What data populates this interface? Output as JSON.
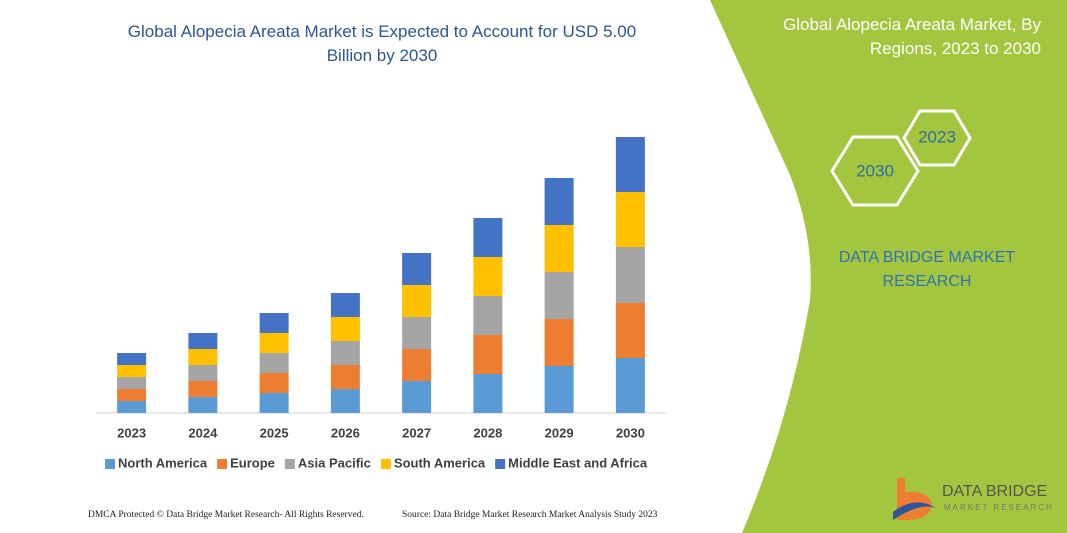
{
  "chart_data": {
    "type": "bar",
    "stacked": true,
    "title": "Global Alopecia Areata Market is Expected to Account for USD 5.00 Billion by 2030",
    "categories": [
      "2023",
      "2024",
      "2025",
      "2026",
      "2027",
      "2028",
      "2029",
      "2030"
    ],
    "series": [
      {
        "name": "North America",
        "color": "#5b9bd5",
        "values": [
          12,
          16,
          20,
          24,
          32,
          39,
          47,
          55
        ]
      },
      {
        "name": "Europe",
        "color": "#ed7d31",
        "values": [
          12,
          16,
          20,
          24,
          32,
          39,
          47,
          55
        ]
      },
      {
        "name": "Asia Pacific",
        "color": "#a5a5a5",
        "values": [
          12,
          16,
          20,
          24,
          32,
          39,
          47,
          56
        ]
      },
      {
        "name": "South America",
        "color": "#ffc000",
        "values": [
          12,
          16,
          20,
          24,
          32,
          39,
          47,
          55
        ]
      },
      {
        "name": "Middle East and Africa",
        "color": "#4472c4",
        "values": [
          12,
          16,
          20,
          24,
          32,
          39,
          47,
          55
        ]
      }
    ],
    "ylim": [
      0,
      290
    ],
    "legend": "bottom"
  },
  "panel": {
    "title": "Global Alopecia Areata Market, By Regions, 2023 to 2030",
    "hexagons": [
      "2030",
      "2023"
    ],
    "brand": "DATA BRIDGE MARKET RESEARCH"
  },
  "footer": {
    "copyright": "DMCA Protected © Data Bridge Market Research- All Rights Reserved.",
    "source": "Source: Data Bridge Market Research  Market Analysis Study 2023"
  },
  "logo": {
    "name": "DATA BRIDGE",
    "tagline": "MARKET RESEARCH"
  }
}
